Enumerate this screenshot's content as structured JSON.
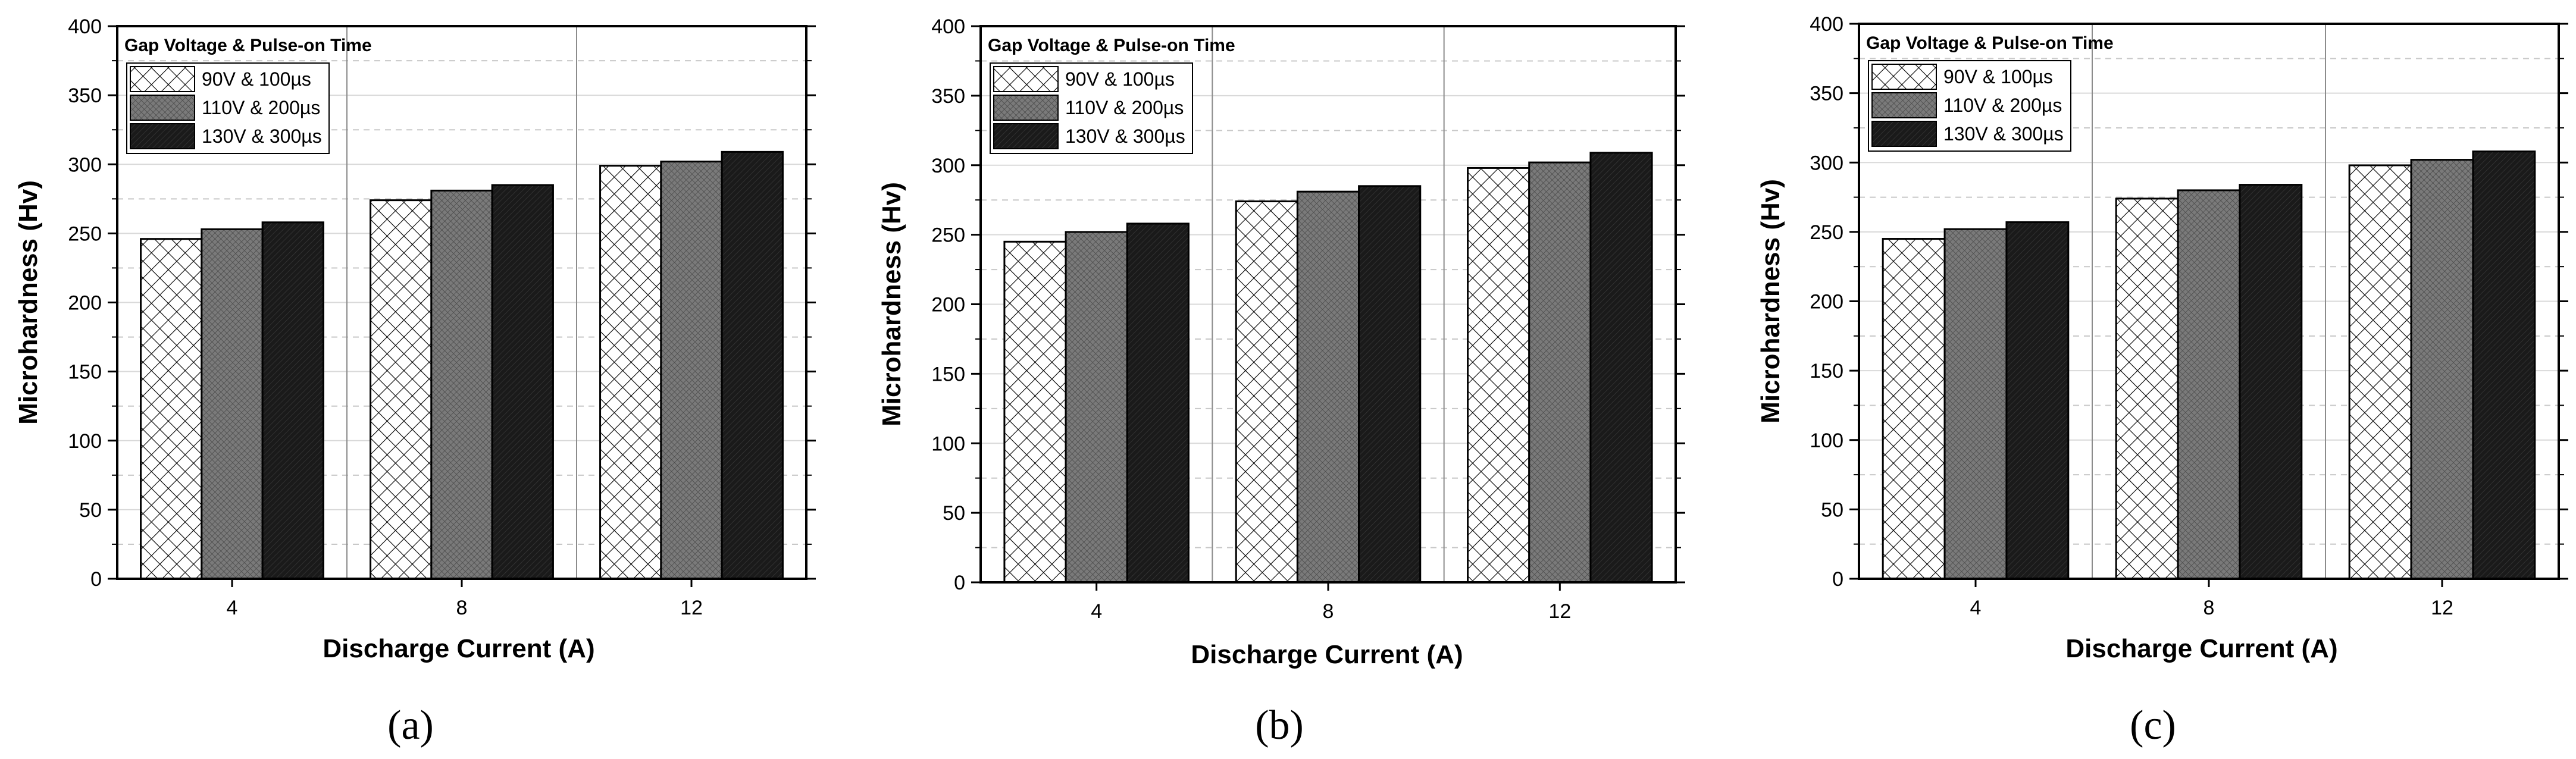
{
  "chart_data": [
    {
      "type": "bar",
      "panel_label": "(a)",
      "categories": [
        "4",
        "8",
        "12"
      ],
      "legend_title": "Gap Voltage & Pulse-on Time",
      "series": [
        {
          "name": "90V & 100µs",
          "values": [
            246,
            274,
            299
          ]
        },
        {
          "name": "110V & 200µs",
          "values": [
            253,
            281,
            302
          ]
        },
        {
          "name": "130V & 300µs",
          "values": [
            258,
            285,
            309
          ]
        }
      ],
      "xlabel": "Discharge Current (A)",
      "ylabel": "Microhardness (Hv)",
      "ylim": [
        0,
        400
      ],
      "yticks": [
        0,
        50,
        100,
        150,
        200,
        250,
        300,
        350,
        400
      ],
      "legend_position": "top-left"
    },
    {
      "type": "bar",
      "panel_label": "(b)",
      "categories": [
        "4",
        "8",
        "12"
      ],
      "legend_title": "Gap Voltage & Pulse-on Time",
      "series": [
        {
          "name": "90V & 100µs",
          "values": [
            245,
            274,
            298
          ]
        },
        {
          "name": "110V & 200µs",
          "values": [
            252,
            281,
            302
          ]
        },
        {
          "name": "130V & 300µs",
          "values": [
            258,
            285,
            309
          ]
        }
      ],
      "xlabel": "Discharge Current (A)",
      "ylabel": "Microhardness (Hv)",
      "ylim": [
        0,
        400
      ],
      "yticks": [
        0,
        50,
        100,
        150,
        200,
        250,
        300,
        350,
        400
      ],
      "legend_position": "top-left"
    },
    {
      "type": "bar",
      "panel_label": "(c)",
      "categories": [
        "4",
        "8",
        "12"
      ],
      "legend_title": "Gap Voltage & Pulse-on Time",
      "series": [
        {
          "name": "90V & 100µs",
          "values": [
            245,
            274,
            298
          ]
        },
        {
          "name": "110V & 200µs",
          "values": [
            252,
            280,
            302
          ]
        },
        {
          "name": "130V & 300µs",
          "values": [
            257,
            284,
            308
          ]
        }
      ],
      "xlabel": "Discharge Current (A)",
      "ylabel": "Microhardness (Hv)",
      "ylim": [
        0,
        400
      ],
      "yticks": [
        0,
        50,
        100,
        150,
        200,
        250,
        300,
        350,
        400
      ],
      "legend_position": "top-left"
    }
  ]
}
